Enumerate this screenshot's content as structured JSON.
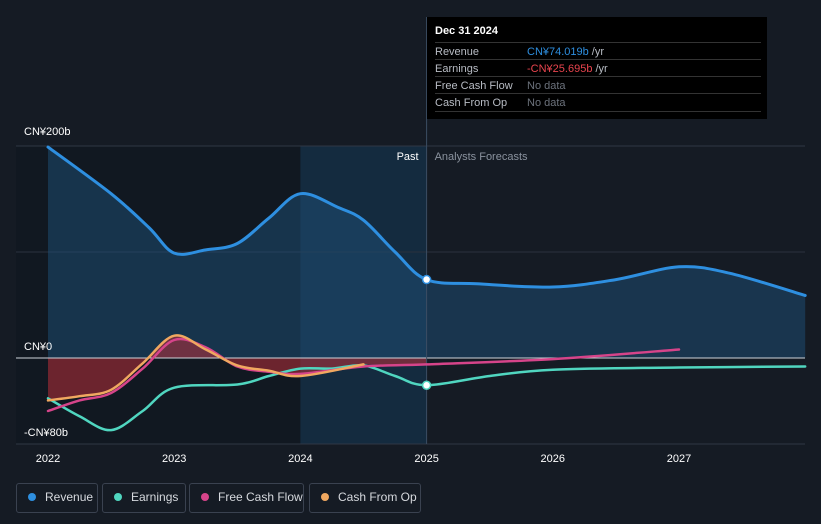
{
  "chart_data": {
    "type": "line",
    "y_axis_labels": [
      "CN¥200b",
      "CN¥0",
      "-CN¥80b"
    ],
    "x_ticks": [
      "2022",
      "2023",
      "2024",
      "2025",
      "2026",
      "2027"
    ],
    "ylim": [
      -80,
      200
    ],
    "xlim": [
      2021.9,
      2028.0
    ],
    "past_label": "Past",
    "forecast_label": "Analysts Forecasts",
    "divider_x": 2025.0,
    "series": [
      {
        "name": "Revenue",
        "color": "#2e8fe0",
        "x": [
          2022.0,
          2022.5,
          2022.8,
          2023.0,
          2023.25,
          2023.5,
          2023.75,
          2024.0,
          2024.3,
          2024.5,
          2024.75,
          2025.0,
          2025.4,
          2026.0,
          2026.5,
          2027.0,
          2027.4,
          2028.0
        ],
        "values": [
          199,
          155,
          123,
          99,
          102,
          108,
          132,
          155,
          142,
          130,
          100,
          74,
          70,
          67,
          74,
          86,
          80,
          59
        ]
      },
      {
        "name": "Earnings",
        "color": "#50d6c0",
        "x": [
          2022.0,
          2022.25,
          2022.5,
          2022.75,
          2023.0,
          2023.5,
          2023.75,
          2024.0,
          2024.25,
          2024.5,
          2024.75,
          2025.0,
          2025.5,
          2026.0,
          2027.0,
          2028.0
        ],
        "values": [
          -38,
          -55,
          -68,
          -50,
          -28,
          -25,
          -17,
          -10,
          -10,
          -7,
          -17,
          -25.7,
          -17,
          -11,
          -9,
          -8
        ]
      },
      {
        "name": "Free Cash Flow",
        "color": "#d6448a",
        "x": [
          2022.0,
          2022.25,
          2022.5,
          2022.75,
          2023.0,
          2023.25,
          2023.5,
          2023.75,
          2024.0,
          2024.5,
          2025.0,
          2026.0,
          2027.0
        ],
        "values": [
          -50,
          -40,
          -33,
          -10,
          17,
          10,
          -8,
          -13,
          -15,
          -8,
          -6,
          -1,
          8
        ]
      },
      {
        "name": "Cash From Op",
        "color": "#f0a860",
        "x": [
          2022.0,
          2022.25,
          2022.5,
          2022.75,
          2023.0,
          2023.25,
          2023.5,
          2023.75,
          2024.0,
          2024.5
        ],
        "values": [
          -40,
          -36,
          -30,
          -5,
          21,
          8,
          -7,
          -12,
          -17,
          -6
        ]
      }
    ]
  },
  "tooltip": {
    "date": "Dec 31 2024",
    "rows": [
      {
        "label": "Revenue",
        "value": "CN¥74.019b",
        "unit": "/yr",
        "color": "#2e8fe0"
      },
      {
        "label": "Earnings",
        "value": "-CN¥25.695b",
        "unit": "/yr",
        "color": "#e8444e"
      },
      {
        "label": "Free Cash Flow",
        "value": "No data",
        "unit": "",
        "color": "#6c727c"
      },
      {
        "label": "Cash From Op",
        "value": "No data",
        "unit": "",
        "color": "#6c727c"
      }
    ]
  },
  "legend": [
    {
      "label": "Revenue",
      "color": "#2e8fe0"
    },
    {
      "label": "Earnings",
      "color": "#50d6c0"
    },
    {
      "label": "Free Cash Flow",
      "color": "#d6448a"
    },
    {
      "label": "Cash From Op",
      "color": "#f0a860"
    }
  ]
}
